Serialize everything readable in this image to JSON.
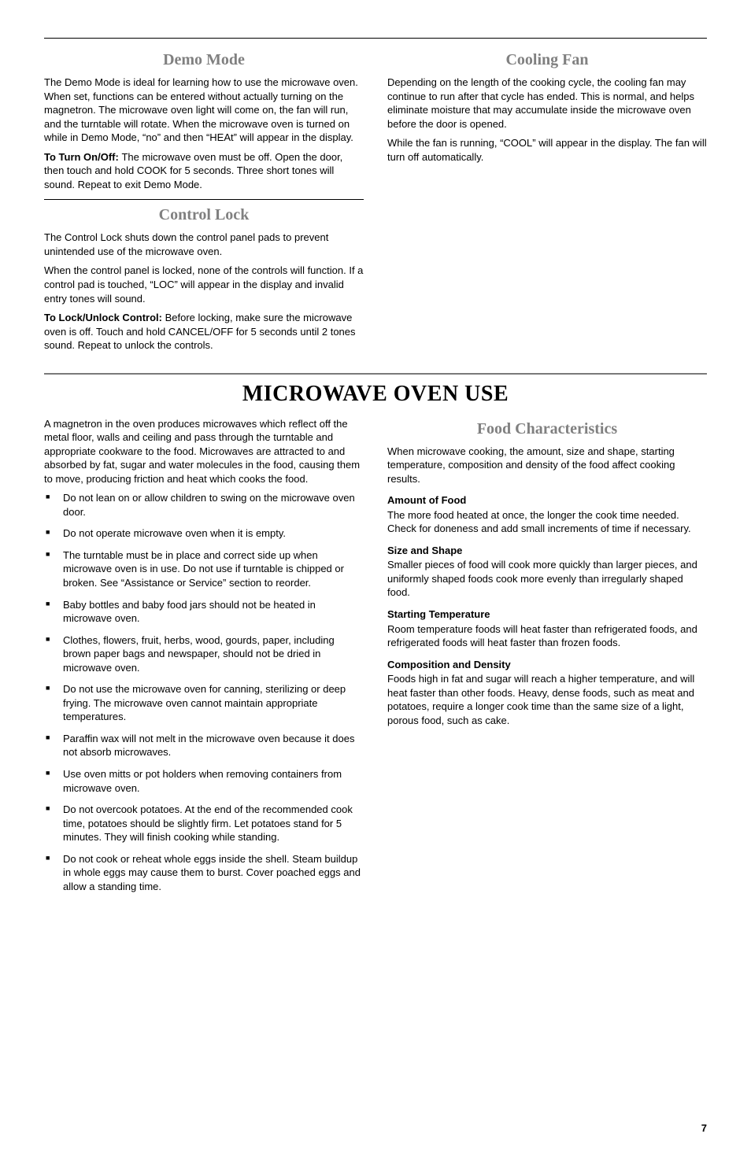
{
  "top": {
    "left": {
      "demo": {
        "heading": "Demo Mode",
        "p1": "The Demo Mode is ideal for learning how to use the microwave oven. When set, functions can be entered without actually turning on the magnetron. The microwave oven light will come on, the fan will run, and the turntable will rotate. When the microwave oven is turned on while in Demo Mode, “no” and then “HEAt” will appear in the display.",
        "p2_bold": "To Turn On/Off: ",
        "p2_rest": "The microwave oven must be off. Open the door, then touch and hold COOK for 5 seconds. Three short tones will sound. Repeat to exit Demo Mode."
      },
      "lock": {
        "heading": "Control Lock",
        "p1": "The Control Lock shuts down the control panel pads to prevent unintended use of the microwave oven.",
        "p2": "When the control panel is locked, none of the controls will function. If a control pad is touched, “LOC” will appear in the display and invalid entry tones will sound.",
        "p3_bold": "To Lock/Unlock Control: ",
        "p3_rest": "Before locking, make sure the microwave oven is off. Touch and hold CANCEL/OFF for 5 seconds until 2 tones sound. Repeat to unlock the controls."
      }
    },
    "right": {
      "fan": {
        "heading": "Cooling Fan",
        "p1": "Depending on the length of the cooking cycle, the cooling fan may continue to run after that cycle has ended. This is normal, and helps eliminate moisture that may accumulate inside the microwave oven before the door is opened.",
        "p2": "While the fan is running, “COOL” will appear in the display. The fan will turn off automatically."
      }
    }
  },
  "main": {
    "heading": "MICROWAVE OVEN USE",
    "left": {
      "intro": "A magnetron in the oven produces microwaves which reflect off the metal floor, walls and ceiling and pass through the turntable and appropriate cookware to the food. Microwaves are attracted to and absorbed by fat, sugar and water molecules in the food, causing them to move, producing friction and heat which cooks the food.",
      "bullets": [
        "Do not lean on or allow children to swing on the microwave oven door.",
        "Do not operate microwave oven when it is empty.",
        "The turntable must be in place and correct side up when microwave oven is in use. Do not use if turntable is chipped or broken. See “Assistance or Service” section to reorder.",
        "Baby bottles and baby food jars should not be heated in microwave oven.",
        "Clothes, flowers, fruit, herbs, wood, gourds, paper, including brown paper bags and newspaper, should not be dried in microwave oven.",
        "Do not use the microwave oven for canning, sterilizing or deep frying. The microwave oven cannot maintain appropriate temperatures.",
        "Paraffin wax will not melt in the microwave oven because it does not absorb microwaves.",
        "Use oven mitts or pot holders when removing containers from microwave oven.",
        "Do not overcook potatoes. At the end of the recommended cook time, potatoes should be slightly firm. Let potatoes stand for 5 minutes. They will finish cooking while standing.",
        "Do not cook or reheat whole eggs inside the shell. Steam buildup in whole eggs may cause them to burst. Cover poached eggs and allow a standing time."
      ]
    },
    "right": {
      "heading": "Food Characteristics",
      "intro": "When microwave cooking, the amount, size and shape, starting temperature, composition and density of the food affect cooking results.",
      "sections": [
        {
          "title": "Amount of Food",
          "body": "The more food heated at once, the longer the cook time needed. Check for doneness and add small increments of time if necessary."
        },
        {
          "title": "Size and Shape",
          "body": "Smaller pieces of food will cook more quickly than larger pieces, and uniformly shaped foods cook more evenly than irregularly shaped food."
        },
        {
          "title": "Starting Temperature",
          "body": "Room temperature foods will heat faster than refrigerated foods, and refrigerated foods will heat faster than frozen foods."
        },
        {
          "title": "Composition and Density",
          "body": "Foods high in fat and sugar will reach a higher temperature, and will heat faster than other foods. Heavy, dense foods, such as meat and potatoes, require a longer cook time than the same size of a light, porous food, such as cake."
        }
      ]
    }
  },
  "pageNumber": "7"
}
